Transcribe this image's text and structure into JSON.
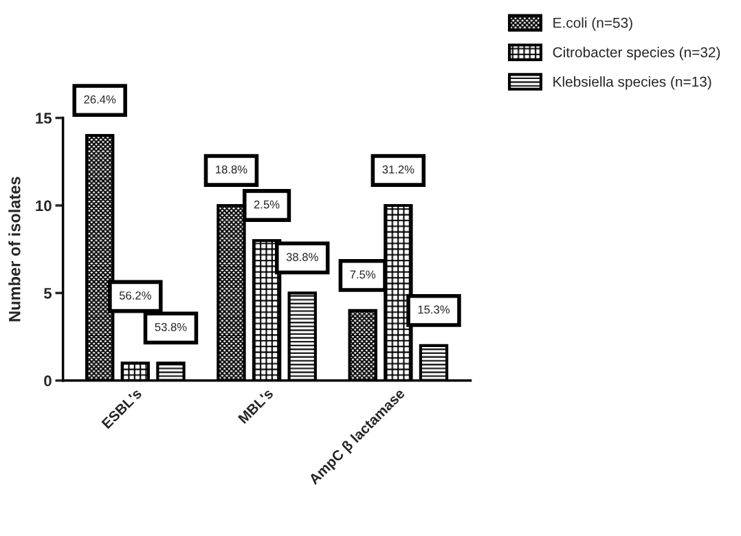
{
  "chart_data": {
    "type": "bar",
    "ylabel": "Number of isolates",
    "categories": [
      "ESBL's",
      "MBL's",
      "AmpC β lactamase"
    ],
    "series": [
      {
        "name": "E.coli (n=53)",
        "color": "#000000",
        "values": [
          14,
          10,
          4
        ]
      },
      {
        "name": "Citrobacter species (n=32)",
        "color": "#000000",
        "values": [
          1,
          8,
          10
        ]
      },
      {
        "name": "Klebsiella species (n=13)",
        "color": "#000000",
        "values": [
          1,
          5,
          2
        ]
      }
    ],
    "annotations": [
      "26.4%",
      "18.8%",
      "7.5%",
      "56.2%",
      "2.5%",
      "31.2%",
      "53.8%",
      "38.8%",
      "15.3%"
    ],
    "ylim": [
      0,
      15
    ],
    "yticks": [
      0,
      5,
      10,
      15
    ],
    "grid": false,
    "legend": "top right"
  }
}
